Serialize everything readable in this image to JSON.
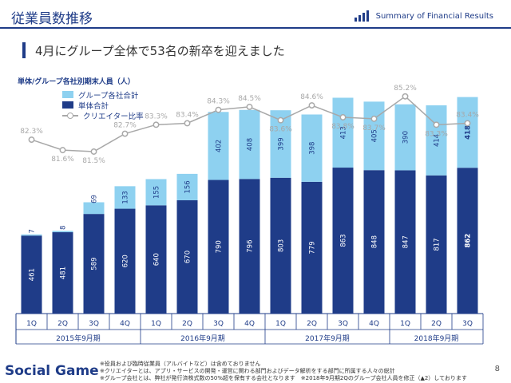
{
  "header": {
    "title": "従業員数推移",
    "summary_label": "Summary of Financial Results"
  },
  "headline": "4月にグループ全体で53名の新卒を迎えました",
  "chart_caption": "単体/グループ各社別期末人員（人）",
  "legend": {
    "group_label": "グループ各社合計",
    "single_label": "単体合計",
    "creator_label": "クリエイター比率"
  },
  "colors": {
    "brand": "#1f3c88",
    "single": "#1f3c88",
    "group": "#8ed1f0",
    "creator": "#a8a8a8"
  },
  "chart_data": {
    "type": "bar",
    "stacked": true,
    "categories": [
      "1Q",
      "2Q",
      "3Q",
      "4Q",
      "1Q",
      "2Q",
      "3Q",
      "4Q",
      "1Q",
      "2Q",
      "3Q",
      "4Q",
      "1Q",
      "2Q",
      "3Q"
    ],
    "groups": [
      {
        "label": "2015年9月期",
        "count": 4
      },
      {
        "label": "2016年9月期",
        "count": 4
      },
      {
        "label": "2017年9月期",
        "count": 4
      },
      {
        "label": "2018年9月期",
        "count": 3
      }
    ],
    "series": [
      {
        "name": "単体合計",
        "values": [
          461,
          481,
          589,
          620,
          640,
          670,
          790,
          796,
          803,
          779,
          863,
          848,
          847,
          817,
          862
        ]
      },
      {
        "name": "グループ各社合計",
        "values": [
          7,
          8,
          69,
          133,
          155,
          156,
          402,
          408,
          399,
          398,
          413,
          405,
          390,
          414,
          418
        ]
      },
      {
        "name": "クリエイター比率",
        "values": [
          82.3,
          81.6,
          81.5,
          82.7,
          83.3,
          83.4,
          84.3,
          84.5,
          83.6,
          84.6,
          83.8,
          83.7,
          85.2,
          83.3,
          83.4
        ]
      }
    ],
    "creator_labels": [
      "82.3%",
      "81.6%",
      "81.5%",
      "82.7%",
      "83.3%",
      "83.4%",
      "84.3%",
      "84.5%",
      "83.6%",
      "84.6%",
      "83.8%",
      "83.7%",
      "85.2%",
      "83.3%",
      "83.4%"
    ],
    "highlight_last": true
  },
  "footnotes": [
    "※役員および臨時従業員（アルバイトなど）は含めておりません",
    "※クリエイターとは、アプリ・サービスの開発・運営に関わる部門およびデータ解析をする部門に所属する人々の総計",
    "※グループ会社とは、弊社が発行済株式数の50%超を保有する会社となります　※2018年9月期2Qのグループ会社人員を修正（▲2）しております"
  ],
  "page_number": "8",
  "watermark": "Social Game Info"
}
